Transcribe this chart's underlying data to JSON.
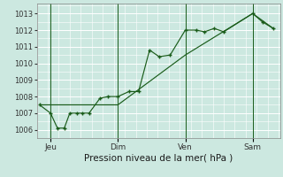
{
  "background_color": "#cce8e0",
  "grid_color": "#ffffff",
  "line_color": "#1a5c1a",
  "marker_color": "#1a5c1a",
  "title": "Pression niveau de la mer( hPa )",
  "xlabel_fontsize": 7.5,
  "ytick_fontsize": 6,
  "xtick_fontsize": 6.5,
  "ylim": [
    1005.5,
    1013.6
  ],
  "yticks": [
    1006,
    1007,
    1008,
    1009,
    1010,
    1011,
    1012,
    1013
  ],
  "x_tick_labels": [
    "Jeu",
    "Dim",
    "Ven",
    "Sam"
  ],
  "x_tick_positions": [
    8,
    57,
    106,
    155
  ],
  "x_vline_positions": [
    8,
    57,
    106,
    155
  ],
  "series1_x": [
    0,
    8,
    13,
    18,
    22,
    27,
    31,
    36,
    44,
    50,
    57,
    65,
    72,
    80,
    87,
    95,
    106,
    114,
    120,
    127,
    134,
    155,
    162,
    170
  ],
  "series1_y": [
    1007.5,
    1007.0,
    1006.1,
    1006.1,
    1007.0,
    1007.0,
    1007.0,
    1007.0,
    1007.9,
    1008.0,
    1008.0,
    1008.3,
    1008.3,
    1010.8,
    1010.4,
    1010.5,
    1012.0,
    1012.0,
    1011.9,
    1012.1,
    1011.9,
    1013.0,
    1012.5,
    1012.1
  ],
  "series2_x": [
    0,
    57,
    106,
    155,
    170
  ],
  "series2_y": [
    1007.5,
    1007.5,
    1010.5,
    1013.0,
    1012.1
  ],
  "xlim": [
    -2,
    175
  ]
}
